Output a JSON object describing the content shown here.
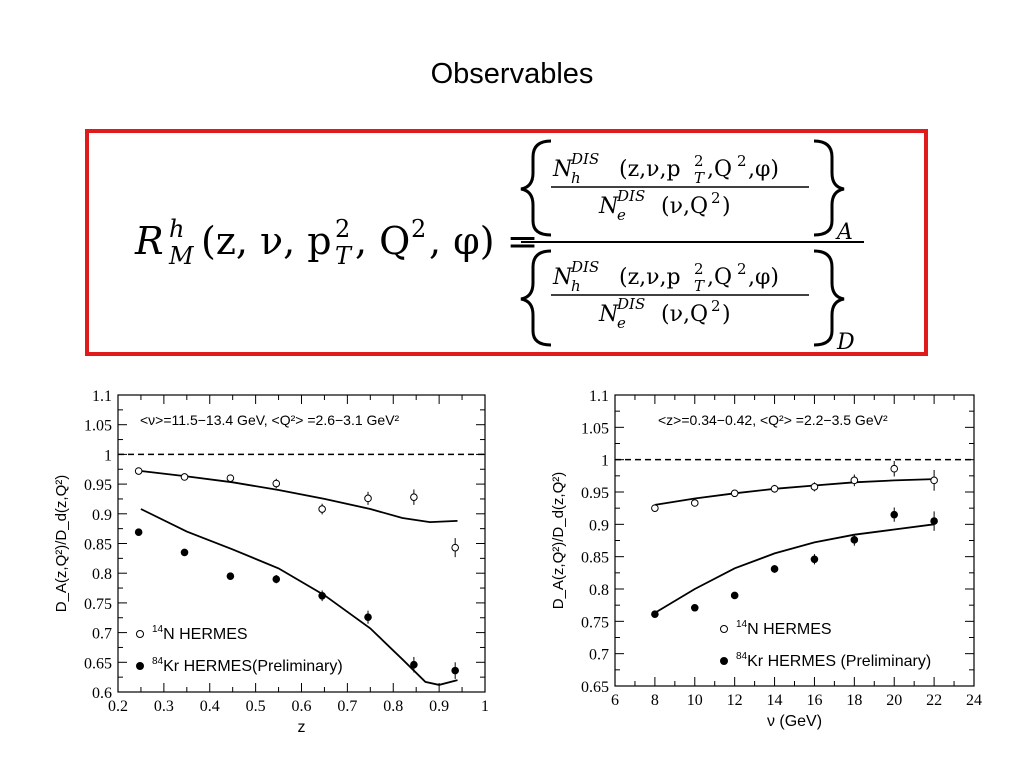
{
  "slide": {
    "title": "Observables"
  },
  "formula": {
    "lhs_symbol": "R",
    "lhs_sup": "h",
    "lhs_sub": "M",
    "lhs_args": "(z, ν, p",
    "lhs_args_sub": "T",
    "lhs_args_sup": "2",
    "lhs_args_rest": ", Q",
    "lhs_q_sup": "2",
    "lhs_args_end": ", φ) =",
    "num_top": "N",
    "num_top_sup": "DIS",
    "num_top_sub": "h",
    "num_top_args": "(z,ν,p",
    "num_top_args_sub": "T",
    "num_top_args_sup": "2",
    "num_top_args_end": ",Q",
    "num_top_q_sup": "2",
    "num_top_final": ",φ)",
    "num_bottom": "N",
    "num_bottom_sup": "DIS",
    "num_bottom_sub": "e",
    "num_bottom_args": "(ν,Q",
    "num_bottom_q_sup": "2",
    "num_bottom_end": ")",
    "sub_upper": "A",
    "sub_lower": "D"
  },
  "chart_data": [
    {
      "type": "scatter",
      "annotation": "<ν>=11.5−13.4 GeV,  <Q²> =2.6−3.1 GeV²",
      "ylabel": "D_A(z,Q²)/D_d(z,Q²)",
      "xlabel": "z",
      "xlim": [
        0.2,
        1.0
      ],
      "ylim": [
        0.6,
        1.1
      ],
      "xticks": [
        "0.2",
        "0.3",
        "0.4",
        "0.5",
        "0.6",
        "0.7",
        "0.8",
        "0.9",
        "1"
      ],
      "yticks": [
        "0.6",
        "0.65",
        "0.7",
        "0.75",
        "0.8",
        "0.85",
        "0.9",
        "0.95",
        "1",
        "1.05",
        "1.1"
      ],
      "reference_line": 1.0,
      "legend": [
        {
          "label_sup": "14",
          "label": "N HERMES",
          "marker": "open"
        },
        {
          "label_sup": "84",
          "label": "Kr HERMES(Preliminary)",
          "marker": "filled"
        }
      ],
      "series": [
        {
          "name": "14N HERMES",
          "marker": "open",
          "x": [
            0.245,
            0.345,
            0.445,
            0.545,
            0.645,
            0.745,
            0.845,
            0.935
          ],
          "y": [
            0.972,
            0.962,
            0.96,
            0.951,
            0.908,
            0.926,
            0.928,
            0.843
          ],
          "err": [
            0.004,
            0.004,
            0.006,
            0.008,
            0.009,
            0.011,
            0.013,
            0.016
          ]
        },
        {
          "name": "84Kr HERMES(Preliminary)",
          "marker": "filled",
          "x": [
            0.245,
            0.345,
            0.445,
            0.545,
            0.645,
            0.745,
            0.845,
            0.935
          ],
          "y": [
            0.869,
            0.835,
            0.795,
            0.79,
            0.762,
            0.726,
            0.646,
            0.636
          ],
          "err": [
            0.004,
            0.004,
            0.005,
            0.007,
            0.009,
            0.011,
            0.013,
            0.014
          ]
        }
      ],
      "curves": [
        {
          "x": [
            0.25,
            0.35,
            0.45,
            0.55,
            0.65,
            0.75,
            0.82,
            0.88,
            0.94
          ],
          "y": [
            0.972,
            0.963,
            0.953,
            0.94,
            0.925,
            0.908,
            0.893,
            0.886,
            0.888
          ]
        },
        {
          "x": [
            0.25,
            0.35,
            0.45,
            0.55,
            0.65,
            0.75,
            0.82,
            0.87,
            0.9,
            0.94
          ],
          "y": [
            0.908,
            0.87,
            0.84,
            0.808,
            0.763,
            0.707,
            0.655,
            0.617,
            0.612,
            0.62
          ]
        }
      ]
    },
    {
      "type": "scatter",
      "annotation": "<z>=0.34−0.42,  <Q²> =2.2−3.5 GeV²",
      "ylabel": "D_A(z,Q²)/D_d(z,Q²)",
      "xlabel": "ν (GeV)",
      "xlim": [
        6,
        24
      ],
      "ylim": [
        0.65,
        1.1
      ],
      "xticks": [
        "6",
        "8",
        "10",
        "12",
        "14",
        "16",
        "18",
        "20",
        "22",
        "24"
      ],
      "yticks": [
        "0.65",
        "0.7",
        "0.75",
        "0.8",
        "0.85",
        "0.9",
        "0.95",
        "1",
        "1.05",
        "1.1"
      ],
      "reference_line": 1.0,
      "legend": [
        {
          "label_sup": "14",
          "label": "N HERMES",
          "marker": "open"
        },
        {
          "label_sup": "84",
          "label": "Kr HERMES (Preliminary)",
          "marker": "filled"
        }
      ],
      "series": [
        {
          "name": "14N HERMES",
          "marker": "open",
          "x": [
            8,
            10,
            12,
            14,
            16,
            18,
            20,
            22
          ],
          "y": [
            0.925,
            0.933,
            0.948,
            0.955,
            0.958,
            0.968,
            0.986,
            0.968
          ],
          "err": [
            0.004,
            0.004,
            0.005,
            0.006,
            0.007,
            0.009,
            0.012,
            0.016
          ]
        },
        {
          "name": "84Kr HERMES (Preliminary)",
          "marker": "filled",
          "x": [
            8,
            10,
            12,
            14,
            16,
            18,
            20,
            22
          ],
          "y": [
            0.761,
            0.771,
            0.79,
            0.831,
            0.846,
            0.876,
            0.915,
            0.905
          ],
          "err": [
            0.003,
            0.003,
            0.004,
            0.006,
            0.008,
            0.009,
            0.011,
            0.015
          ]
        }
      ],
      "curves": [
        {
          "x": [
            8,
            10,
            12,
            14,
            16,
            18,
            20,
            22
          ],
          "y": [
            0.93,
            0.94,
            0.948,
            0.955,
            0.96,
            0.965,
            0.968,
            0.97
          ]
        },
        {
          "x": [
            8,
            10,
            12,
            14,
            16,
            18,
            20,
            22
          ],
          "y": [
            0.763,
            0.8,
            0.832,
            0.855,
            0.872,
            0.884,
            0.892,
            0.9
          ]
        }
      ]
    }
  ]
}
